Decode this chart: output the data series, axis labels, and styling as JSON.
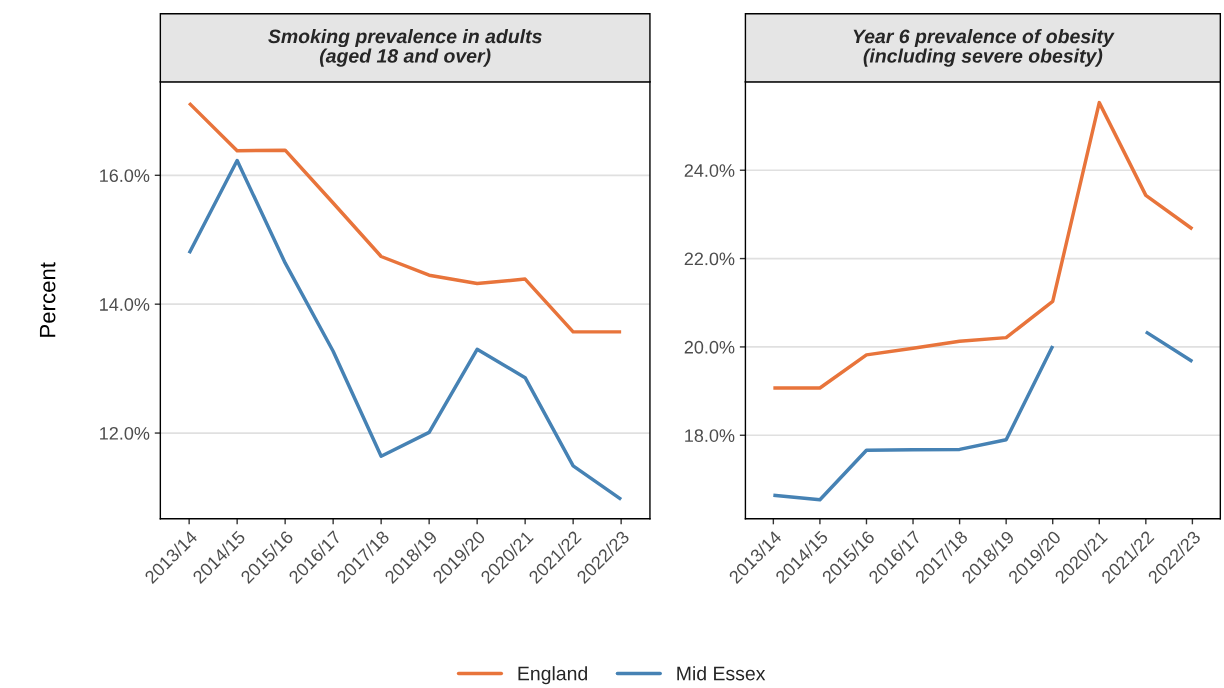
{
  "chart_data": [
    {
      "type": "line",
      "title": "Smoking prevalence in adults\n(aged 18 and over)",
      "ylabel": "Percent",
      "categories": [
        "2013/14",
        "2014/15",
        "2015/16",
        "2016/17",
        "2017/18",
        "2018/19",
        "2019/20",
        "2020/21",
        "2021/22",
        "2022/23"
      ],
      "series": [
        {
          "name": "England",
          "color": "#e8743b",
          "values": [
            17.12,
            16.38,
            16.39,
            15.57,
            14.74,
            14.45,
            14.32,
            14.39,
            13.57,
            13.57
          ]
        },
        {
          "name": "Mid Essex",
          "color": "#4682b4",
          "values": [
            14.79,
            16.23,
            14.64,
            13.27,
            11.64,
            12.01,
            13.3,
            12.86,
            11.49,
            10.97
          ]
        }
      ],
      "ylim": [
        10.67,
        17.45
      ],
      "yticks": [
        {
          "value": 12,
          "label": "12.0%"
        },
        {
          "value": 14,
          "label": "14.0%"
        },
        {
          "value": 16,
          "label": "16.0%"
        }
      ],
      "grid": "y",
      "legend": "bottom",
      "line_style": "solid"
    },
    {
      "type": "line",
      "title": "Year 6 prevalence of obesity\n(including severe obesity)",
      "categories": [
        "2013/14",
        "2014/15",
        "2015/16",
        "2016/17",
        "2017/18",
        "2018/19",
        "2019/20",
        "2020/21",
        "2021/22",
        "2022/23"
      ],
      "series": [
        {
          "name": "England",
          "color": "#e8743b",
          "values": [
            19.07,
            19.07,
            19.82,
            19.97,
            20.13,
            20.21,
            21.03,
            25.53,
            23.43,
            22.67
          ]
        },
        {
          "name": "Mid Essex",
          "color": "#4682b4",
          "values": [
            16.64,
            16.54,
            17.66,
            17.67,
            17.68,
            17.9,
            20.02,
            null,
            20.34,
            19.67
          ]
        }
      ],
      "ylim": [
        16.11,
        26.0
      ],
      "yticks": [
        {
          "value": 18,
          "label": "18.0%"
        },
        {
          "value": 20,
          "label": "20.0%"
        },
        {
          "value": 22,
          "label": "22.0%"
        },
        {
          "value": 24,
          "label": "24.0%"
        }
      ],
      "grid": "y",
      "legend": "bottom",
      "line_style": "solid"
    }
  ]
}
